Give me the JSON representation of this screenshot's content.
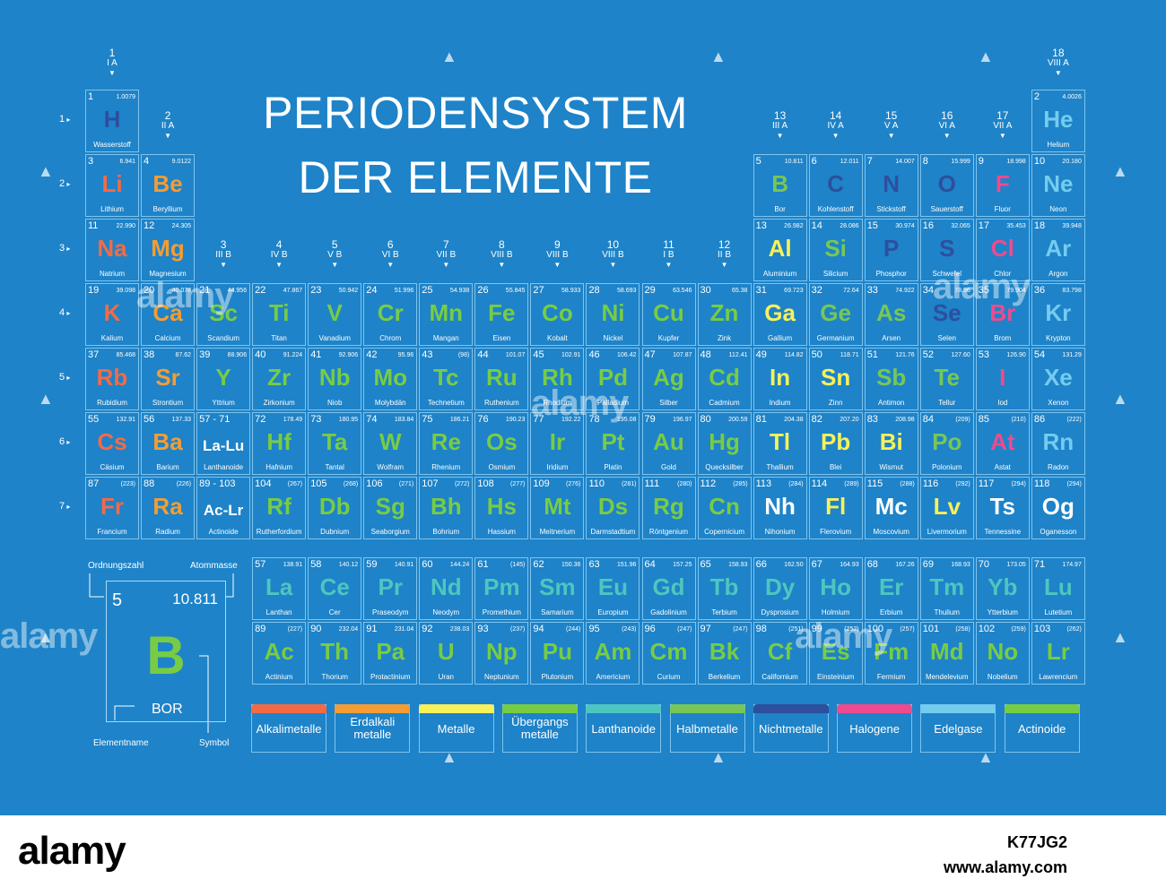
{
  "title": {
    "line1": "PERIODENSYSTEM",
    "line2": "DER ELEMENTE"
  },
  "colors": {
    "alkali": "#f46a45",
    "earth": "#f39d34",
    "metal": "#f7f15a",
    "transition": "#78cc44",
    "lanth": "#4ec6c0",
    "metalloid": "#77c756",
    "nonmetal": "#2d4f9e",
    "halogen": "#ee4b8e",
    "noble": "#74ccee",
    "act": "#78cc44",
    "unknown": "#ffffff"
  },
  "groups": [
    {
      "n": "1",
      "a": "I A",
      "col": 1,
      "row": 0
    },
    {
      "n": "2",
      "a": "II A",
      "col": 2,
      "row": 1
    },
    {
      "n": "3",
      "a": "III B",
      "col": 3,
      "row": 3
    },
    {
      "n": "4",
      "a": "IV B",
      "col": 4,
      "row": 3
    },
    {
      "n": "5",
      "a": "V B",
      "col": 5,
      "row": 3
    },
    {
      "n": "6",
      "a": "VI B",
      "col": 6,
      "row": 3
    },
    {
      "n": "7",
      "a": "VII B",
      "col": 7,
      "row": 3
    },
    {
      "n": "8",
      "a": "VIII B",
      "col": 8,
      "row": 3
    },
    {
      "n": "9",
      "a": "VIII B",
      "col": 9,
      "row": 3
    },
    {
      "n": "10",
      "a": "VIII B",
      "col": 10,
      "row": 3
    },
    {
      "n": "11",
      "a": "I B",
      "col": 11,
      "row": 3
    },
    {
      "n": "12",
      "a": "II B",
      "col": 12,
      "row": 3
    },
    {
      "n": "13",
      "a": "III A",
      "col": 13,
      "row": 1
    },
    {
      "n": "14",
      "a": "IV A",
      "col": 14,
      "row": 1
    },
    {
      "n": "15",
      "a": "V A",
      "col": 15,
      "row": 1
    },
    {
      "n": "16",
      "a": "VI A",
      "col": 16,
      "row": 1
    },
    {
      "n": "17",
      "a": "VII A",
      "col": 17,
      "row": 1
    },
    {
      "n": "18",
      "a": "VIII A",
      "col": 18,
      "row": 0
    }
  ],
  "periods": [
    "1",
    "2",
    "3",
    "4",
    "5",
    "6",
    "7"
  ],
  "elements": [
    {
      "z": "1",
      "s": "H",
      "n": "Wasserstoff",
      "m": "1.0079",
      "c": "nonmetal",
      "g": 1,
      "p": 1
    },
    {
      "z": "2",
      "s": "He",
      "n": "Helium",
      "m": "4.0026",
      "c": "noble",
      "g": 18,
      "p": 1
    },
    {
      "z": "3",
      "s": "Li",
      "n": "Lithium",
      "m": "6.941",
      "c": "alkali",
      "g": 1,
      "p": 2
    },
    {
      "z": "4",
      "s": "Be",
      "n": "Beryllium",
      "m": "9.0122",
      "c": "earth",
      "g": 2,
      "p": 2
    },
    {
      "z": "5",
      "s": "B",
      "n": "Bor",
      "m": "10.811",
      "c": "metalloid",
      "g": 13,
      "p": 2
    },
    {
      "z": "6",
      "s": "C",
      "n": "Kohlenstoff",
      "m": "12.011",
      "c": "nonmetal",
      "g": 14,
      "p": 2
    },
    {
      "z": "7",
      "s": "N",
      "n": "Stickstoff",
      "m": "14.007",
      "c": "nonmetal",
      "g": 15,
      "p": 2
    },
    {
      "z": "8",
      "s": "O",
      "n": "Sauerstoff",
      "m": "15.999",
      "c": "nonmetal",
      "g": 16,
      "p": 2
    },
    {
      "z": "9",
      "s": "F",
      "n": "Fluor",
      "m": "18.998",
      "c": "halogen",
      "g": 17,
      "p": 2
    },
    {
      "z": "10",
      "s": "Ne",
      "n": "Neon",
      "m": "20.180",
      "c": "noble",
      "g": 18,
      "p": 2
    },
    {
      "z": "11",
      "s": "Na",
      "n": "Natrium",
      "m": "22.990",
      "c": "alkali",
      "g": 1,
      "p": 3
    },
    {
      "z": "12",
      "s": "Mg",
      "n": "Magnesium",
      "m": "24.305",
      "c": "earth",
      "g": 2,
      "p": 3
    },
    {
      "z": "13",
      "s": "Al",
      "n": "Aluminium",
      "m": "26.982",
      "c": "metal",
      "g": 13,
      "p": 3
    },
    {
      "z": "14",
      "s": "Si",
      "n": "Silicium",
      "m": "28.086",
      "c": "metalloid",
      "g": 14,
      "p": 3
    },
    {
      "z": "15",
      "s": "P",
      "n": "Phosphor",
      "m": "30.974",
      "c": "nonmetal",
      "g": 15,
      "p": 3
    },
    {
      "z": "16",
      "s": "S",
      "n": "Schwefel",
      "m": "32.065",
      "c": "nonmetal",
      "g": 16,
      "p": 3
    },
    {
      "z": "17",
      "s": "Cl",
      "n": "Chlor",
      "m": "35.453",
      "c": "halogen",
      "g": 17,
      "p": 3
    },
    {
      "z": "18",
      "s": "Ar",
      "n": "Argon",
      "m": "39.948",
      "c": "noble",
      "g": 18,
      "p": 3
    },
    {
      "z": "19",
      "s": "K",
      "n": "Kalium",
      "m": "39.098",
      "c": "alkali",
      "g": 1,
      "p": 4
    },
    {
      "z": "20",
      "s": "Ca",
      "n": "Calcium",
      "m": "40.078",
      "c": "earth",
      "g": 2,
      "p": 4
    },
    {
      "z": "21",
      "s": "Sc",
      "n": "Scandium",
      "m": "44.956",
      "c": "transition",
      "g": 3,
      "p": 4
    },
    {
      "z": "22",
      "s": "Ti",
      "n": "Titan",
      "m": "47.867",
      "c": "transition",
      "g": 4,
      "p": 4
    },
    {
      "z": "23",
      "s": "V",
      "n": "Vanadium",
      "m": "50.942",
      "c": "transition",
      "g": 5,
      "p": 4
    },
    {
      "z": "24",
      "s": "Cr",
      "n": "Chrom",
      "m": "51.996",
      "c": "transition",
      "g": 6,
      "p": 4
    },
    {
      "z": "25",
      "s": "Mn",
      "n": "Mangan",
      "m": "54.938",
      "c": "transition",
      "g": 7,
      "p": 4
    },
    {
      "z": "26",
      "s": "Fe",
      "n": "Eisen",
      "m": "55.845",
      "c": "transition",
      "g": 8,
      "p": 4
    },
    {
      "z": "27",
      "s": "Co",
      "n": "Kobalt",
      "m": "58.933",
      "c": "transition",
      "g": 9,
      "p": 4
    },
    {
      "z": "28",
      "s": "Ni",
      "n": "Nickel",
      "m": "58.693",
      "c": "transition",
      "g": 10,
      "p": 4
    },
    {
      "z": "29",
      "s": "Cu",
      "n": "Kupfer",
      "m": "63.546",
      "c": "transition",
      "g": 11,
      "p": 4
    },
    {
      "z": "30",
      "s": "Zn",
      "n": "Zink",
      "m": "65.38",
      "c": "transition",
      "g": 12,
      "p": 4
    },
    {
      "z": "31",
      "s": "Ga",
      "n": "Gallium",
      "m": "69.723",
      "c": "metal",
      "g": 13,
      "p": 4
    },
    {
      "z": "32",
      "s": "Ge",
      "n": "Germanium",
      "m": "72.64",
      "c": "metalloid",
      "g": 14,
      "p": 4
    },
    {
      "z": "33",
      "s": "As",
      "n": "Arsen",
      "m": "74.922",
      "c": "metalloid",
      "g": 15,
      "p": 4
    },
    {
      "z": "34",
      "s": "Se",
      "n": "Selen",
      "m": "78.96",
      "c": "nonmetal",
      "g": 16,
      "p": 4
    },
    {
      "z": "35",
      "s": "Br",
      "n": "Brom",
      "m": "79.904",
      "c": "halogen",
      "g": 17,
      "p": 4
    },
    {
      "z": "36",
      "s": "Kr",
      "n": "Krypton",
      "m": "83.798",
      "c": "noble",
      "g": 18,
      "p": 4
    },
    {
      "z": "37",
      "s": "Rb",
      "n": "Rubidium",
      "m": "85.468",
      "c": "alkali",
      "g": 1,
      "p": 5
    },
    {
      "z": "38",
      "s": "Sr",
      "n": "Strontium",
      "m": "87.62",
      "c": "earth",
      "g": 2,
      "p": 5
    },
    {
      "z": "39",
      "s": "Y",
      "n": "Yttrium",
      "m": "88.906",
      "c": "transition",
      "g": 3,
      "p": 5
    },
    {
      "z": "40",
      "s": "Zr",
      "n": "Zirkonium",
      "m": "91.224",
      "c": "transition",
      "g": 4,
      "p": 5
    },
    {
      "z": "41",
      "s": "Nb",
      "n": "Niob",
      "m": "92.906",
      "c": "transition",
      "g": 5,
      "p": 5
    },
    {
      "z": "42",
      "s": "Mo",
      "n": "Molybdän",
      "m": "95.96",
      "c": "transition",
      "g": 6,
      "p": 5
    },
    {
      "z": "43",
      "s": "Tc",
      "n": "Technetium",
      "m": "(98)",
      "c": "transition",
      "g": 7,
      "p": 5
    },
    {
      "z": "44",
      "s": "Ru",
      "n": "Ruthenium",
      "m": "101.07",
      "c": "transition",
      "g": 8,
      "p": 5
    },
    {
      "z": "45",
      "s": "Rh",
      "n": "Rhodium",
      "m": "102.91",
      "c": "transition",
      "g": 9,
      "p": 5
    },
    {
      "z": "46",
      "s": "Pd",
      "n": "Palladium",
      "m": "106.42",
      "c": "transition",
      "g": 10,
      "p": 5
    },
    {
      "z": "47",
      "s": "Ag",
      "n": "Silber",
      "m": "107.87",
      "c": "transition",
      "g": 11,
      "p": 5
    },
    {
      "z": "48",
      "s": "Cd",
      "n": "Cadmium",
      "m": "112.41",
      "c": "transition",
      "g": 12,
      "p": 5
    },
    {
      "z": "49",
      "s": "In",
      "n": "Indium",
      "m": "114.82",
      "c": "metal",
      "g": 13,
      "p": 5
    },
    {
      "z": "50",
      "s": "Sn",
      "n": "Zinn",
      "m": "118.71",
      "c": "metal",
      "g": 14,
      "p": 5
    },
    {
      "z": "51",
      "s": "Sb",
      "n": "Antimon",
      "m": "121.76",
      "c": "metalloid",
      "g": 15,
      "p": 5
    },
    {
      "z": "52",
      "s": "Te",
      "n": "Tellur",
      "m": "127.60",
      "c": "metalloid",
      "g": 16,
      "p": 5
    },
    {
      "z": "53",
      "s": "I",
      "n": "Iod",
      "m": "126.90",
      "c": "halogen",
      "g": 17,
      "p": 5
    },
    {
      "z": "54",
      "s": "Xe",
      "n": "Xenon",
      "m": "131.29",
      "c": "noble",
      "g": 18,
      "p": 5
    },
    {
      "z": "55",
      "s": "Cs",
      "n": "Cäsium",
      "m": "132.91",
      "c": "alkali",
      "g": 1,
      "p": 6
    },
    {
      "z": "56",
      "s": "Ba",
      "n": "Barium",
      "m": "137.33",
      "c": "earth",
      "g": 2,
      "p": 6
    },
    {
      "z": "57 - 71",
      "s": "La-Lu",
      "n": "Lanthanoide",
      "m": "",
      "c": "unknown",
      "g": 3,
      "p": 6,
      "small": true
    },
    {
      "z": "72",
      "s": "Hf",
      "n": "Hafnium",
      "m": "178.49",
      "c": "transition",
      "g": 4,
      "p": 6
    },
    {
      "z": "73",
      "s": "Ta",
      "n": "Tantal",
      "m": "180.95",
      "c": "transition",
      "g": 5,
      "p": 6
    },
    {
      "z": "74",
      "s": "W",
      "n": "Wolfram",
      "m": "183.84",
      "c": "transition",
      "g": 6,
      "p": 6
    },
    {
      "z": "75",
      "s": "Re",
      "n": "Rhenium",
      "m": "186.21",
      "c": "transition",
      "g": 7,
      "p": 6
    },
    {
      "z": "76",
      "s": "Os",
      "n": "Osmium",
      "m": "190.23",
      "c": "transition",
      "g": 8,
      "p": 6
    },
    {
      "z": "77",
      "s": "Ir",
      "n": "Iridium",
      "m": "192.22",
      "c": "transition",
      "g": 9,
      "p": 6
    },
    {
      "z": "78",
      "s": "Pt",
      "n": "Platin",
      "m": "195.08",
      "c": "transition",
      "g": 10,
      "p": 6
    },
    {
      "z": "79",
      "s": "Au",
      "n": "Gold",
      "m": "196.97",
      "c": "transition",
      "g": 11,
      "p": 6
    },
    {
      "z": "80",
      "s": "Hg",
      "n": "Quecksilber",
      "m": "200.59",
      "c": "transition",
      "g": 12,
      "p": 6
    },
    {
      "z": "81",
      "s": "Tl",
      "n": "Thallium",
      "m": "204.38",
      "c": "metal",
      "g": 13,
      "p": 6
    },
    {
      "z": "82",
      "s": "Pb",
      "n": "Blei",
      "m": "207.20",
      "c": "metal",
      "g": 14,
      "p": 6
    },
    {
      "z": "83",
      "s": "Bi",
      "n": "Wismut",
      "m": "208.98",
      "c": "metal",
      "g": 15,
      "p": 6
    },
    {
      "z": "84",
      "s": "Po",
      "n": "Polonium",
      "m": "(209)",
      "c": "metalloid",
      "g": 16,
      "p": 6
    },
    {
      "z": "85",
      "s": "At",
      "n": "Astat",
      "m": "(210)",
      "c": "halogen",
      "g": 17,
      "p": 6
    },
    {
      "z": "86",
      "s": "Rn",
      "n": "Radon",
      "m": "(222)",
      "c": "noble",
      "g": 18,
      "p": 6
    },
    {
      "z": "87",
      "s": "Fr",
      "n": "Francium",
      "m": "(223)",
      "c": "alkali",
      "g": 1,
      "p": 7
    },
    {
      "z": "88",
      "s": "Ra",
      "n": "Radium",
      "m": "(226)",
      "c": "earth",
      "g": 2,
      "p": 7
    },
    {
      "z": "89 - 103",
      "s": "Ac-Lr",
      "n": "Actinoide",
      "m": "",
      "c": "unknown",
      "g": 3,
      "p": 7,
      "small": true
    },
    {
      "z": "104",
      "s": "Rf",
      "n": "Rutherfordium",
      "m": "(267)",
      "c": "transition",
      "g": 4,
      "p": 7
    },
    {
      "z": "105",
      "s": "Db",
      "n": "Dubnium",
      "m": "(268)",
      "c": "transition",
      "g": 5,
      "p": 7
    },
    {
      "z": "106",
      "s": "Sg",
      "n": "Seaborgium",
      "m": "(271)",
      "c": "transition",
      "g": 6,
      "p": 7
    },
    {
      "z": "107",
      "s": "Bh",
      "n": "Bohrium",
      "m": "(272)",
      "c": "transition",
      "g": 7,
      "p": 7
    },
    {
      "z": "108",
      "s": "Hs",
      "n": "Hassium",
      "m": "(277)",
      "c": "transition",
      "g": 8,
      "p": 7
    },
    {
      "z": "109",
      "s": "Mt",
      "n": "Meitnerium",
      "m": "(276)",
      "c": "transition",
      "g": 9,
      "p": 7
    },
    {
      "z": "110",
      "s": "Ds",
      "n": "Darmstadtium",
      "m": "(281)",
      "c": "transition",
      "g": 10,
      "p": 7
    },
    {
      "z": "111",
      "s": "Rg",
      "n": "Röntgenium",
      "m": "(280)",
      "c": "transition",
      "g": 11,
      "p": 7
    },
    {
      "z": "112",
      "s": "Cn",
      "n": "Copernicium",
      "m": "(285)",
      "c": "transition",
      "g": 12,
      "p": 7
    },
    {
      "z": "113",
      "s": "Nh",
      "n": "Nihonium",
      "m": "(284)",
      "c": "unknown",
      "g": 13,
      "p": 7
    },
    {
      "z": "114",
      "s": "Fl",
      "n": "Flerovium",
      "m": "(289)",
      "c": "metal",
      "g": 14,
      "p": 7
    },
    {
      "z": "115",
      "s": "Mc",
      "n": "Moscovium",
      "m": "(288)",
      "c": "unknown",
      "g": 15,
      "p": 7
    },
    {
      "z": "116",
      "s": "Lv",
      "n": "Livermorium",
      "m": "(292)",
      "c": "metal",
      "g": 16,
      "p": 7
    },
    {
      "z": "117",
      "s": "Ts",
      "n": "Tennessine",
      "m": "(294)",
      "c": "unknown",
      "g": 17,
      "p": 7
    },
    {
      "z": "118",
      "s": "Og",
      "n": "Oganesson",
      "m": "(294)",
      "c": "unknown",
      "g": 18,
      "p": 7
    },
    {
      "z": "57",
      "s": "La",
      "n": "Lanthan",
      "m": "138.91",
      "c": "lanth",
      "g": 4,
      "p": 9
    },
    {
      "z": "58",
      "s": "Ce",
      "n": "Cer",
      "m": "140.12",
      "c": "lanth",
      "g": 5,
      "p": 9
    },
    {
      "z": "59",
      "s": "Pr",
      "n": "Praseodym",
      "m": "140.91",
      "c": "lanth",
      "g": 6,
      "p": 9
    },
    {
      "z": "60",
      "s": "Nd",
      "n": "Neodym",
      "m": "144.24",
      "c": "lanth",
      "g": 7,
      "p": 9
    },
    {
      "z": "61",
      "s": "Pm",
      "n": "Promethium",
      "m": "(145)",
      "c": "lanth",
      "g": 8,
      "p": 9
    },
    {
      "z": "62",
      "s": "Sm",
      "n": "Samarium",
      "m": "150.36",
      "c": "lanth",
      "g": 9,
      "p": 9
    },
    {
      "z": "63",
      "s": "Eu",
      "n": "Europium",
      "m": "151.96",
      "c": "lanth",
      "g": 10,
      "p": 9
    },
    {
      "z": "64",
      "s": "Gd",
      "n": "Gadolinium",
      "m": "157.25",
      "c": "lanth",
      "g": 11,
      "p": 9
    },
    {
      "z": "65",
      "s": "Tb",
      "n": "Terbium",
      "m": "158.93",
      "c": "lanth",
      "g": 12,
      "p": 9
    },
    {
      "z": "66",
      "s": "Dy",
      "n": "Dysprosium",
      "m": "162.50",
      "c": "lanth",
      "g": 13,
      "p": 9
    },
    {
      "z": "67",
      "s": "Ho",
      "n": "Holmium",
      "m": "164.93",
      "c": "lanth",
      "g": 14,
      "p": 9
    },
    {
      "z": "68",
      "s": "Er",
      "n": "Erbium",
      "m": "167.26",
      "c": "lanth",
      "g": 15,
      "p": 9
    },
    {
      "z": "69",
      "s": "Tm",
      "n": "Thulium",
      "m": "168.93",
      "c": "lanth",
      "g": 16,
      "p": 9
    },
    {
      "z": "70",
      "s": "Yb",
      "n": "Ytterbium",
      "m": "173.05",
      "c": "lanth",
      "g": 17,
      "p": 9
    },
    {
      "z": "71",
      "s": "Lu",
      "n": "Lutetium",
      "m": "174.97",
      "c": "lanth",
      "g": 18,
      "p": 9
    },
    {
      "z": "89",
      "s": "Ac",
      "n": "Actinium",
      "m": "(227)",
      "c": "act",
      "g": 4,
      "p": 10
    },
    {
      "z": "90",
      "s": "Th",
      "n": "Thorium",
      "m": "232.04",
      "c": "act",
      "g": 5,
      "p": 10
    },
    {
      "z": "91",
      "s": "Pa",
      "n": "Protactinium",
      "m": "231.04",
      "c": "act",
      "g": 6,
      "p": 10
    },
    {
      "z": "92",
      "s": "U",
      "n": "Uran",
      "m": "238.03",
      "c": "act",
      "g": 7,
      "p": 10
    },
    {
      "z": "93",
      "s": "Np",
      "n": "Neptunium",
      "m": "(237)",
      "c": "act",
      "g": 8,
      "p": 10
    },
    {
      "z": "94",
      "s": "Pu",
      "n": "Plutonium",
      "m": "(244)",
      "c": "act",
      "g": 9,
      "p": 10
    },
    {
      "z": "95",
      "s": "Am",
      "n": "Americium",
      "m": "(243)",
      "c": "act",
      "g": 10,
      "p": 10
    },
    {
      "z": "96",
      "s": "Cm",
      "n": "Curium",
      "m": "(247)",
      "c": "act",
      "g": 11,
      "p": 10
    },
    {
      "z": "97",
      "s": "Bk",
      "n": "Berkelium",
      "m": "(247)",
      "c": "act",
      "g": 12,
      "p": 10
    },
    {
      "z": "98",
      "s": "Cf",
      "n": "Californium",
      "m": "(251)",
      "c": "act",
      "g": 13,
      "p": 10
    },
    {
      "z": "99",
      "s": "Es",
      "n": "Einsteinium",
      "m": "(252)",
      "c": "act",
      "g": 14,
      "p": 10
    },
    {
      "z": "100",
      "s": "Fm",
      "n": "Fermium",
      "m": "(257)",
      "c": "act",
      "g": 15,
      "p": 10
    },
    {
      "z": "101",
      "s": "Md",
      "n": "Mendelevium",
      "m": "(258)",
      "c": "act",
      "g": 16,
      "p": 10
    },
    {
      "z": "102",
      "s": "No",
      "n": "Nobelium",
      "m": "(259)",
      "c": "act",
      "g": 17,
      "p": 10
    },
    {
      "z": "103",
      "s": "Lr",
      "n": "Lawrencium",
      "m": "(262)",
      "c": "act",
      "g": 18,
      "p": 10
    }
  ],
  "key": {
    "ordnungszahl_label": "Ordnungszahl",
    "atommasse_label": "Atommasse",
    "number": "5",
    "mass": "10.811",
    "symbol": "B",
    "name": "BOR",
    "elementname_label": "Elementname",
    "symbol_label": "Symbol"
  },
  "legend": [
    {
      "label": "Alkalimetalle",
      "color": "#f46a45"
    },
    {
      "label": "Erdalkali\nmetalle",
      "color": "#f39d34"
    },
    {
      "label": "Metalle",
      "color": "#f7f15a"
    },
    {
      "label": "Übergangs\nmetalle",
      "color": "#78cc44"
    },
    {
      "label": "Lanthanoide",
      "color": "#4ec6c0"
    },
    {
      "label": "Halbmetalle",
      "color": "#77c756"
    },
    {
      "label": "Nichtmetalle",
      "color": "#2d4f9e"
    },
    {
      "label": "Halogene",
      "color": "#ee4b8e"
    },
    {
      "label": "Edelgase",
      "color": "#74ccee"
    },
    {
      "label": "Actinoide",
      "color": "#78cc44"
    }
  ],
  "watermark": "alamy",
  "footer": {
    "logo": "alamy",
    "image_id": "K77JG2",
    "url": "www.alamy.com"
  }
}
